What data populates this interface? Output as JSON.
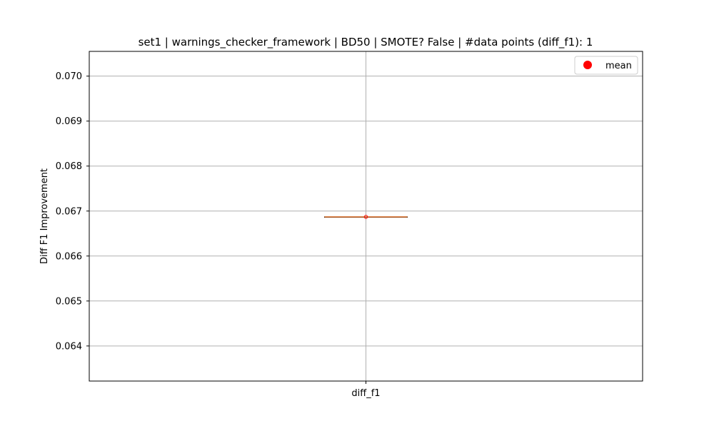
{
  "chart_data": {
    "type": "box",
    "title": "set1 | warnings_checker_framework | BD50 | SMOTE? False | #data points (diff_f1): 1",
    "xlabel": "",
    "ylabel": "Diff F1 Improvement",
    "categories": [
      "diff_f1"
    ],
    "ylim": [
      0.06322,
      0.07055
    ],
    "yticks": [
      0.064,
      0.065,
      0.066,
      0.067,
      0.068,
      0.069,
      0.07
    ],
    "ytick_labels": [
      "0.064",
      "0.065",
      "0.066",
      "0.067",
      "0.068",
      "0.069",
      "0.070"
    ],
    "grid": true,
    "legend_position": "top-right",
    "legend": [
      {
        "label": "mean",
        "color": "#ff0000",
        "marker": "circle"
      }
    ],
    "series": [
      {
        "name": "diff_f1",
        "values": [
          0.06687
        ],
        "min": 0.06687,
        "q1": 0.06687,
        "median": 0.06687,
        "q3": 0.06687,
        "max": 0.06687,
        "mean": 0.06687
      }
    ],
    "colors": {
      "median": "#e07b39",
      "box": "#000000",
      "mean": "#ff0000",
      "grid": "#b0b0b0"
    }
  }
}
